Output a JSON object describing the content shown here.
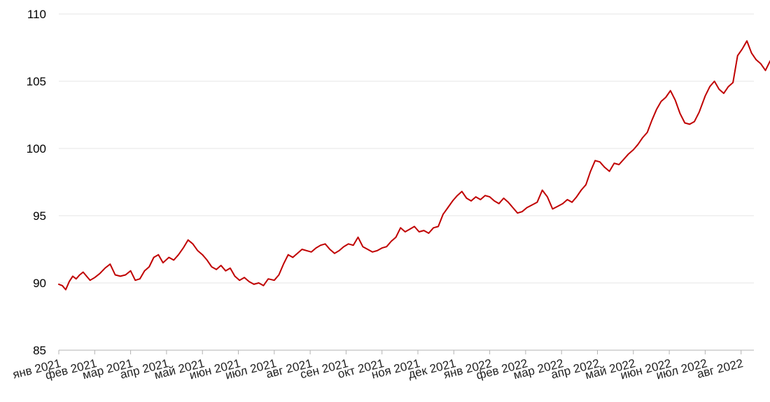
{
  "chart_data": {
    "type": "line",
    "title": "",
    "xlabel": "",
    "ylabel": "",
    "ylim": [
      85,
      110
    ],
    "yticks": [
      85,
      90,
      95,
      100,
      105,
      110
    ],
    "grid": true,
    "legend": "none",
    "x_tick_labels": [
      "янв 2021",
      "фев 2021",
      "мар 2021",
      "апр 2021",
      "май 2021",
      "июн 2021",
      "июл 2021",
      "авг 2021",
      "сен 2021",
      "окт 2021",
      "ноя 2021",
      "дек 2021",
      "янв 2022",
      "фев 2022",
      "мар 2022",
      "апр 2022",
      "май 2022",
      "июн 2022",
      "июл 2022",
      "авг 2022"
    ],
    "x_start_month": "2021-01",
    "x_end_month": "2022-08",
    "colors": {
      "line": "#c00000",
      "grid": "#e6e6e6",
      "axis": "#b3b3b3"
    },
    "series": [
      {
        "name": "",
        "color": "#c00000",
        "x": [
          "2021-01-01",
          "2021-01-04",
          "2021-01-07",
          "2021-01-10",
          "2021-01-13",
          "2021-01-16",
          "2021-01-19",
          "2021-01-22",
          "2021-01-25",
          "2021-01-28",
          "2021-02-01",
          "2021-02-05",
          "2021-02-09",
          "2021-02-13",
          "2021-02-17",
          "2021-02-21",
          "2021-02-25",
          "2021-03-01",
          "2021-03-05",
          "2021-03-09",
          "2021-03-13",
          "2021-03-17",
          "2021-03-21",
          "2021-03-25",
          "2021-03-29",
          "2021-04-03",
          "2021-04-07",
          "2021-04-11",
          "2021-04-15",
          "2021-04-19",
          "2021-04-23",
          "2021-04-27",
          "2021-05-01",
          "2021-05-05",
          "2021-05-09",
          "2021-05-13",
          "2021-05-17",
          "2021-05-21",
          "2021-05-25",
          "2021-05-29",
          "2021-06-02",
          "2021-06-06",
          "2021-06-10",
          "2021-06-14",
          "2021-06-18",
          "2021-06-22",
          "2021-06-26",
          "2021-07-01",
          "2021-07-05",
          "2021-07-09",
          "2021-07-13",
          "2021-07-17",
          "2021-07-21",
          "2021-07-25",
          "2021-07-29",
          "2021-08-02",
          "2021-08-06",
          "2021-08-10",
          "2021-08-14",
          "2021-08-18",
          "2021-08-22",
          "2021-08-26",
          "2021-08-30",
          "2021-09-03",
          "2021-09-07",
          "2021-09-11",
          "2021-09-15",
          "2021-09-19",
          "2021-09-23",
          "2021-09-27",
          "2021-10-01",
          "2021-10-05",
          "2021-10-09",
          "2021-10-13",
          "2021-10-17",
          "2021-10-21",
          "2021-10-25",
          "2021-10-29",
          "2021-11-02",
          "2021-11-06",
          "2021-11-10",
          "2021-11-14",
          "2021-11-18",
          "2021-11-22",
          "2021-11-26",
          "2021-11-30",
          "2021-12-04",
          "2021-12-08",
          "2021-12-12",
          "2021-12-16",
          "2021-12-20",
          "2021-12-24",
          "2021-12-28",
          "2022-01-01",
          "2022-01-05",
          "2022-01-09",
          "2022-01-13",
          "2022-01-17",
          "2022-01-21",
          "2022-01-25",
          "2022-01-29",
          "2022-02-02",
          "2022-02-06",
          "2022-02-10",
          "2022-02-14",
          "2022-02-18",
          "2022-02-22",
          "2022-02-26",
          "2022-03-02",
          "2022-03-06",
          "2022-03-10",
          "2022-03-14",
          "2022-03-18",
          "2022-03-22",
          "2022-03-26",
          "2022-03-30",
          "2022-04-03",
          "2022-04-07",
          "2022-04-11",
          "2022-04-15",
          "2022-04-19",
          "2022-04-23",
          "2022-04-27",
          "2022-05-01",
          "2022-05-05",
          "2022-05-09",
          "2022-05-13",
          "2022-05-17",
          "2022-05-21",
          "2022-05-25",
          "2022-05-29",
          "2022-06-02",
          "2022-06-06",
          "2022-06-10",
          "2022-06-14",
          "2022-06-18",
          "2022-06-22",
          "2022-06-26",
          "2022-07-01",
          "2022-07-05",
          "2022-07-09",
          "2022-07-13",
          "2022-07-17",
          "2022-07-21",
          "2022-07-25",
          "2022-07-29",
          "2022-08-02",
          "2022-08-06",
          "2022-08-10",
          "2022-08-14",
          "2022-08-18",
          "2022-08-22",
          "2022-08-26"
        ],
        "values": [
          89.9,
          89.8,
          89.5,
          90.1,
          90.5,
          90.3,
          90.6,
          90.8,
          90.5,
          90.2,
          90.4,
          90.7,
          91.1,
          91.4,
          90.6,
          90.5,
          90.6,
          90.9,
          90.2,
          90.3,
          90.9,
          91.2,
          91.9,
          92.1,
          91.5,
          91.9,
          91.7,
          92.1,
          92.6,
          93.2,
          92.9,
          92.4,
          92.1,
          91.7,
          91.2,
          91.0,
          91.3,
          90.9,
          91.1,
          90.5,
          90.2,
          90.4,
          90.1,
          89.9,
          90.0,
          89.8,
          90.3,
          90.2,
          90.6,
          91.4,
          92.1,
          91.9,
          92.2,
          92.5,
          92.4,
          92.3,
          92.6,
          92.8,
          92.9,
          92.5,
          92.2,
          92.4,
          92.7,
          92.9,
          92.8,
          93.4,
          92.7,
          92.5,
          92.3,
          92.4,
          92.6,
          92.7,
          93.1,
          93.4,
          94.1,
          93.8,
          94.0,
          94.2,
          93.8,
          93.9,
          93.7,
          94.1,
          94.2,
          95.1,
          95.6,
          96.1,
          96.5,
          96.8,
          96.3,
          96.1,
          96.4,
          96.2,
          96.5,
          96.4,
          96.1,
          95.9,
          96.3,
          96.0,
          95.6,
          95.2,
          95.3,
          95.6,
          95.8,
          96.0,
          96.9,
          96.4,
          95.5,
          95.7,
          95.9,
          96.2,
          96.0,
          96.4,
          96.9,
          97.3,
          98.3,
          99.1,
          99.0,
          98.6,
          98.3,
          98.9,
          98.8,
          99.2,
          99.6,
          99.9,
          100.3,
          100.8,
          101.2,
          102.1,
          102.9,
          103.5,
          103.8,
          104.3,
          103.6,
          102.6,
          101.9,
          101.8,
          102.0,
          102.7,
          103.9,
          104.6,
          105.0,
          104.4,
          104.1,
          104.6,
          104.9,
          106.9,
          107.4,
          108.0,
          107.1,
          106.6,
          106.3,
          105.8,
          106.5
        ]
      }
    ]
  }
}
